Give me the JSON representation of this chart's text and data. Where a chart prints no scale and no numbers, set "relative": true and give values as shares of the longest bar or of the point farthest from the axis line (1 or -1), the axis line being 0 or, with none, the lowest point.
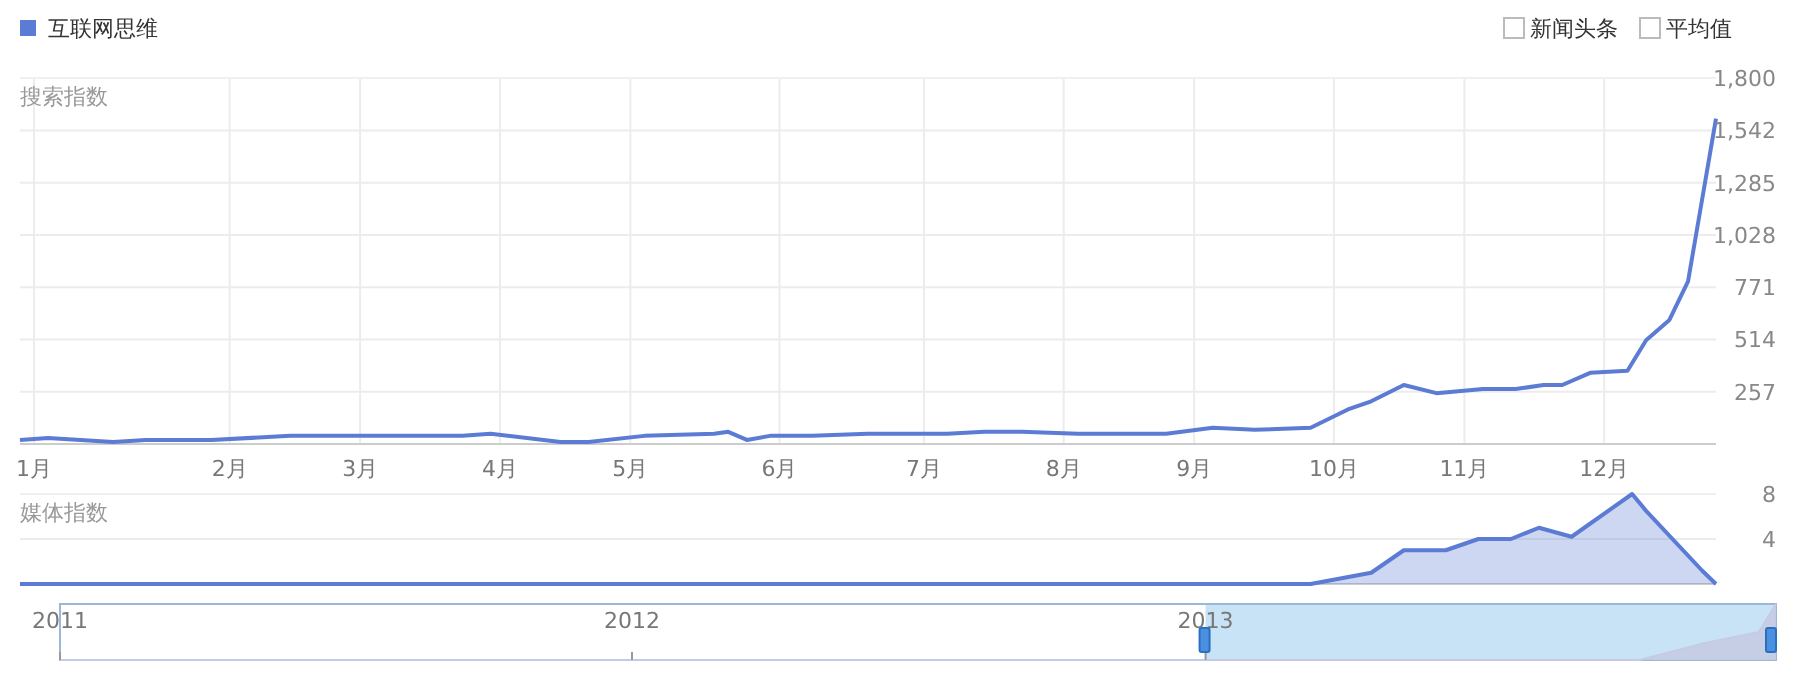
{
  "chart_data": [
    {
      "type": "line",
      "ylabel": "搜索指数",
      "legend": "top left",
      "grid": true,
      "annotations": [
        "新闻头条",
        "平均值"
      ],
      "x": [
        "2013-01-01",
        "2013-01-07",
        "2013-01-21",
        "2013-01-28",
        "2013-02-11",
        "2013-02-28",
        "2013-03-16",
        "2013-04-06",
        "2013-04-12",
        "2013-04-27",
        "2013-05-03",
        "2013-05-15",
        "2013-05-30",
        "2013-06-02",
        "2013-06-06",
        "2013-06-11",
        "2013-06-20",
        "2013-07-02",
        "2013-07-19",
        "2013-07-27",
        "2013-08-04",
        "2013-08-16",
        "2013-08-25",
        "2013-09-04",
        "2013-09-14",
        "2013-09-23",
        "2013-10-05",
        "2013-10-13",
        "2013-10-18",
        "2013-10-25",
        "2013-11-01",
        "2013-11-11",
        "2013-11-18",
        "2013-11-24",
        "2013-11-28",
        "2013-12-04",
        "2013-12-12",
        "2013-12-16",
        "2013-12-21",
        "2013-12-25",
        "2013-12-28",
        "2013-12-31"
      ],
      "series": [
        {
          "name": "互联网思维",
          "color": "#5b7bd5",
          "values": [
            20,
            30,
            10,
            20,
            20,
            40,
            40,
            40,
            50,
            10,
            10,
            40,
            50,
            60,
            20,
            40,
            40,
            50,
            50,
            60,
            60,
            50,
            50,
            50,
            80,
            70,
            80,
            170,
            210,
            290,
            250,
            270,
            270,
            290,
            290,
            350,
            360,
            510,
            610,
            800,
            1200,
            1600
          ]
        }
      ],
      "xlim": [
        "2013-01-01",
        "2013-12-31"
      ],
      "xticks": [
        {
          "value": "2013-01-04",
          "label": "1月"
        },
        {
          "value": "2013-02-15",
          "label": "2月"
        },
        {
          "value": "2013-03-15",
          "label": "3月"
        },
        {
          "value": "2013-04-14",
          "label": "4月"
        },
        {
          "value": "2013-05-12",
          "label": "5月"
        },
        {
          "value": "2013-06-13",
          "label": "6月"
        },
        {
          "value": "2013-07-14",
          "label": "7月"
        },
        {
          "value": "2013-08-13",
          "label": "8月"
        },
        {
          "value": "2013-09-10",
          "label": "9月"
        },
        {
          "value": "2013-10-10",
          "label": "10月"
        },
        {
          "value": "2013-11-07",
          "label": "11月"
        },
        {
          "value": "2013-12-07",
          "label": "12月"
        }
      ],
      "ylim": [
        0,
        1800
      ],
      "yticks": [
        257,
        514,
        771,
        {
          "value": 1028,
          "label": "1,028"
        },
        {
          "value": 1285,
          "label": "1,285"
        },
        {
          "value": 1542,
          "label": "1,542"
        },
        {
          "value": 1800,
          "label": "1,800"
        }
      ]
    },
    {
      "type": "area",
      "ylabel": "媒体指数",
      "grid": "y",
      "tick_labels": "y",
      "x": [
        "2013-01-01",
        "2013-10-05",
        "2013-10-18",
        "2013-10-25",
        "2013-11-03",
        "2013-11-10",
        "2013-11-17",
        "2013-11-23",
        "2013-11-30",
        "2013-12-13",
        "2013-12-16",
        "2013-12-28",
        "2013-12-31"
      ],
      "series": [
        {
          "color": "#5b7bd5",
          "values": [
            0,
            0,
            1,
            3,
            3,
            4,
            4,
            5,
            4.2,
            8,
            6.5,
            1.2,
            0
          ]
        }
      ],
      "xlim": [
        "2013-01-01",
        "2013-12-31"
      ],
      "ylim": [
        0,
        8
      ],
      "yticks": [
        4,
        8
      ]
    },
    {
      "type": "area",
      "relative": true,
      "x": [
        "2011-01-01",
        "2013-10-05",
        "2013-11-15",
        "2013-12-20",
        "2013-12-31"
      ],
      "series": [
        {
          "color": "#c5cbe4",
          "values": [
            0,
            0,
            0.3,
            0.5,
            1
          ]
        }
      ],
      "xlim": [
        "2011-01-01",
        "2013-12-31"
      ],
      "xticks": [
        "2011",
        "2012",
        "2013"
      ],
      "bands": [
        {
          "axis": "x",
          "from": "2013-01-01",
          "to": "2013-12-31",
          "color": "#c8e3f5"
        }
      ]
    }
  ]
}
